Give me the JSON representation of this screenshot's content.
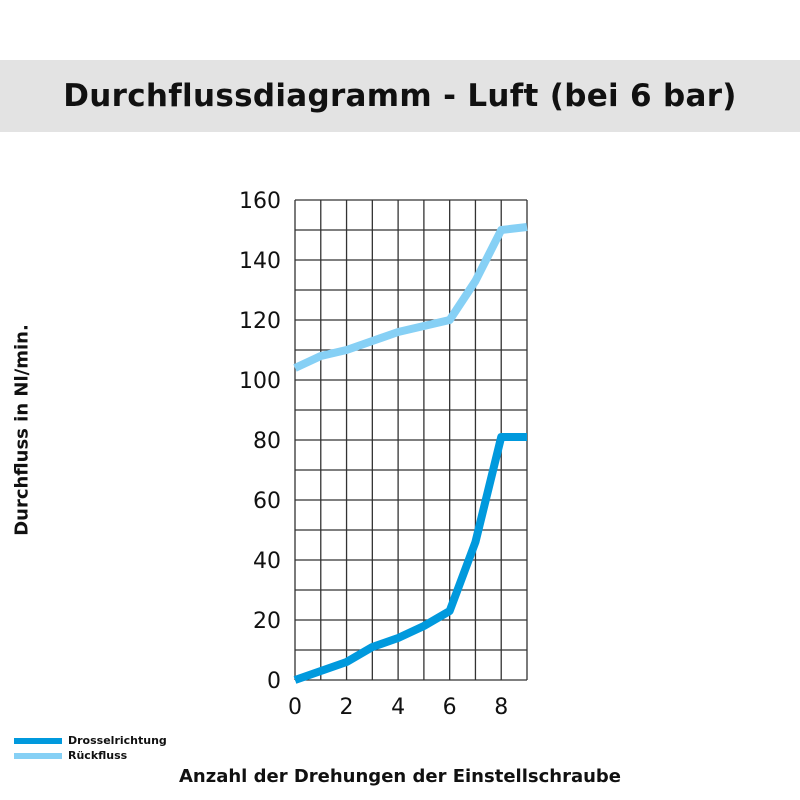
{
  "chart_data": {
    "type": "line",
    "title": "Durchflussdiagramm - Luft (bei 6 bar)",
    "xlabel": "Anzahl der Drehungen der Einstellschraube",
    "ylabel": "Durchfluss in Nl/min.",
    "xlim": [
      0,
      9
    ],
    "ylim": [
      0,
      160
    ],
    "xticks": [
      0,
      2,
      4,
      6,
      8
    ],
    "yticks": [
      0,
      20,
      40,
      60,
      80,
      100,
      120,
      140,
      160
    ],
    "grid": true,
    "legend_position": "bottom-left",
    "series": [
      {
        "name": "Drosselrichtung",
        "color": "#0099dd",
        "x": [
          0,
          1,
          2,
          3,
          4,
          5,
          6,
          7,
          8,
          9
        ],
        "y": [
          0,
          3,
          6,
          11,
          14,
          18,
          23,
          46,
          81,
          81
        ]
      },
      {
        "name": "Rückfluss",
        "color": "#86d0f5",
        "x": [
          0,
          1,
          2,
          3,
          4,
          5,
          6,
          7,
          8,
          9
        ],
        "y": [
          104,
          108,
          110,
          113,
          116,
          118,
          120,
          133,
          150,
          151
        ]
      }
    ]
  }
}
